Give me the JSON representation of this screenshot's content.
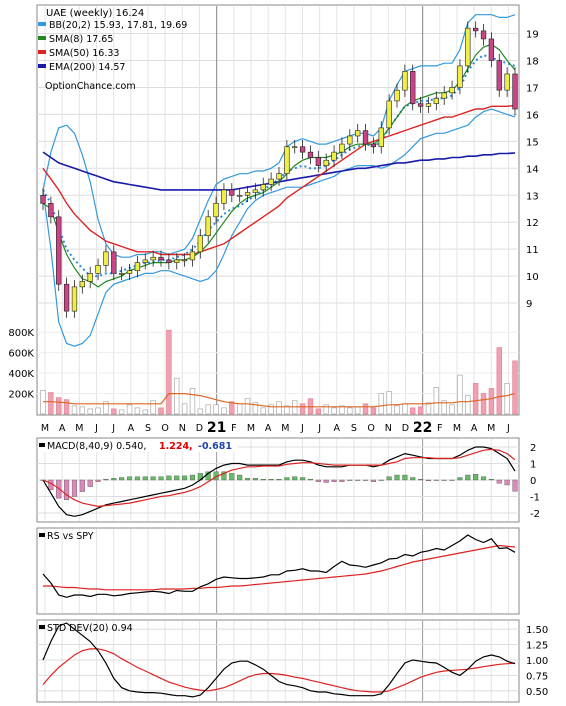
{
  "chart_data": {
    "type": "line",
    "time_axis": {
      "months": [
        "M",
        "A",
        "M",
        "J",
        "J",
        "A",
        "S",
        "O",
        "N",
        "D",
        "21",
        "F",
        "M",
        "A",
        "M",
        "J",
        "J",
        "A",
        "S",
        "O",
        "N",
        "D",
        "22",
        "F",
        "M",
        "A",
        "M",
        "J"
      ],
      "year_markers": [
        "21",
        "22"
      ]
    },
    "price_panel": {
      "title": "UAE (weekly) 16.24",
      "legend": [
        {
          "label": "BB(20,2) 15.93, 17.81, 19.69",
          "color": "#3399dd"
        },
        {
          "label": "SMA(8) 17.65",
          "color": "#228822"
        },
        {
          "label": "SMA(50) 16.33",
          "color": "#dd2222"
        },
        {
          "label": "EMA(200) 14.57",
          "color": "#1a1aaa"
        }
      ],
      "watermark": "OptionChance.com",
      "ylim": [
        8,
        19.8
      ],
      "yticks": [
        "9",
        "10",
        "11",
        "12",
        "13",
        "14",
        "15",
        "16",
        "17",
        "18",
        "19"
      ],
      "close": [
        12.7,
        12.2,
        9.7,
        8.7,
        9.6,
        9.8,
        10.1,
        10.4,
        10.9,
        10.1,
        10.1,
        10.2,
        10.5,
        10.6,
        10.7,
        10.6,
        10.5,
        10.6,
        10.6,
        10.9,
        11.5,
        12.2,
        12.7,
        13.2,
        13.0,
        13.0,
        13.1,
        13.2,
        13.4,
        13.6,
        13.8,
        14.8,
        14.8,
        14.6,
        14.4,
        14.1,
        14.3,
        14.6,
        14.9,
        15.2,
        15.4,
        14.9,
        14.8,
        15.5,
        16.5,
        16.9,
        17.6,
        16.4,
        16.3,
        16.4,
        16.6,
        16.8,
        17.0,
        17.8,
        19.2,
        19.1,
        18.8,
        18.0,
        16.9,
        17.5,
        16.2
      ],
      "bb_upper": [
        13.2,
        14.6,
        15.5,
        15.6,
        15.3,
        14.5,
        13.5,
        12.1,
        11.2,
        10.8,
        10.7,
        10.7,
        10.8,
        10.8,
        10.9,
        10.9,
        10.8,
        10.9,
        11.0,
        11.4,
        12.1,
        12.8,
        13.4,
        13.6,
        13.7,
        13.8,
        13.8,
        13.9,
        13.9,
        14.0,
        14.2,
        14.8,
        15.0,
        15.1,
        15.0,
        14.9,
        14.9,
        15.0,
        15.1,
        15.2,
        15.3,
        15.3,
        15.2,
        15.5,
        16.5,
        17.1,
        17.6,
        17.7,
        17.8,
        17.8,
        17.8,
        17.9,
        17.9,
        18.4,
        19.4,
        19.7,
        19.7,
        19.7,
        19.6,
        19.6,
        19.7
      ],
      "bb_middle": [
        13.2,
        12.7,
        11.8,
        11.0,
        10.6,
        10.3,
        10.0,
        10.0,
        10.1,
        10.1,
        10.2,
        10.3,
        10.4,
        10.5,
        10.5,
        10.6,
        10.6,
        10.7,
        10.8,
        11.0,
        11.3,
        11.7,
        12.0,
        12.3,
        12.5,
        12.6,
        12.8,
        13.0,
        13.2,
        13.4,
        13.6,
        13.9,
        14.0,
        14.1,
        14.0,
        14.0,
        14.1,
        14.3,
        14.5,
        14.7,
        14.8,
        14.9,
        14.8,
        15.0,
        15.5,
        15.9,
        16.3,
        16.4,
        16.5,
        16.5,
        16.6,
        16.6,
        16.7,
        17.0,
        17.6,
        18.0,
        18.2,
        18.1,
        18.0,
        17.9,
        17.8
      ],
      "bb_lower": [
        13.2,
        11.0,
        8.3,
        7.5,
        7.4,
        7.5,
        7.8,
        8.6,
        9.4,
        9.7,
        9.8,
        9.9,
        10.0,
        10.1,
        10.1,
        10.2,
        10.2,
        10.1,
        10.0,
        9.9,
        9.8,
        9.9,
        10.2,
        10.8,
        11.5,
        12.0,
        12.5,
        12.8,
        13.0,
        13.1,
        13.2,
        13.3,
        13.3,
        13.3,
        13.4,
        13.5,
        13.6,
        13.7,
        13.9,
        14.0,
        14.1,
        14.1,
        14.1,
        14.0,
        14.1,
        14.3,
        14.5,
        14.8,
        15.1,
        15.2,
        15.3,
        15.3,
        15.4,
        15.5,
        15.6,
        15.9,
        16.1,
        16.2,
        16.1,
        16.0,
        15.9
      ],
      "sma8": [
        12.7,
        12.5,
        11.6,
        10.8,
        10.3,
        9.9,
        9.8,
        9.6,
        9.8,
        9.9,
        10.0,
        10.2,
        10.3,
        10.4,
        10.5,
        10.5,
        10.5,
        10.6,
        10.6,
        10.7,
        10.9,
        11.2,
        11.6,
        12.0,
        12.4,
        12.7,
        12.9,
        13.0,
        13.1,
        13.3,
        13.5,
        13.8,
        14.1,
        14.3,
        14.4,
        14.4,
        14.4,
        14.5,
        14.6,
        14.8,
        14.9,
        14.9,
        14.9,
        15.1,
        15.5,
        15.9,
        16.3,
        16.5,
        16.6,
        16.7,
        16.8,
        16.8,
        16.9,
        17.2,
        17.7,
        18.2,
        18.5,
        18.6,
        18.4,
        18.0,
        17.65
      ],
      "sma50": [
        14.0,
        13.6,
        13.2,
        12.7,
        12.3,
        12.0,
        11.7,
        11.5,
        11.3,
        11.2,
        11.1,
        11.0,
        10.9,
        10.9,
        10.9,
        10.8,
        10.8,
        10.8,
        10.8,
        10.8,
        10.9,
        11.0,
        11.1,
        11.2,
        11.4,
        11.6,
        11.8,
        12.0,
        12.2,
        12.4,
        12.6,
        12.9,
        13.1,
        13.3,
        13.5,
        13.7,
        13.9,
        14.1,
        14.3,
        14.5,
        14.7,
        14.9,
        15.0,
        15.1,
        15.2,
        15.3,
        15.4,
        15.5,
        15.6,
        15.7,
        15.8,
        15.9,
        15.9,
        16.0,
        16.1,
        16.2,
        16.2,
        16.3,
        16.3,
        16.3,
        16.33
      ],
      "ema200": [
        14.6,
        14.4,
        14.2,
        14.1,
        14.0,
        13.9,
        13.8,
        13.7,
        13.6,
        13.5,
        13.45,
        13.4,
        13.35,
        13.3,
        13.25,
        13.2,
        13.2,
        13.2,
        13.2,
        13.2,
        13.2,
        13.2,
        13.2,
        13.2,
        13.2,
        13.25,
        13.3,
        13.35,
        13.4,
        13.45,
        13.5,
        13.55,
        13.6,
        13.65,
        13.7,
        13.75,
        13.8,
        13.85,
        13.9,
        13.95,
        14.0,
        14.0,
        14.05,
        14.1,
        14.15,
        14.2,
        14.2,
        14.25,
        14.3,
        14.3,
        14.35,
        14.35,
        14.4,
        14.4,
        14.45,
        14.45,
        14.5,
        14.5,
        14.55,
        14.55,
        14.57
      ]
    },
    "volume_panel": {
      "yticks": [
        "200K",
        "400K",
        "600K",
        "800K"
      ],
      "ylim": [
        0,
        900000
      ],
      "volume": [
        230000,
        210000,
        160000,
        140000,
        80000,
        70000,
        50000,
        60000,
        120000,
        50000,
        40000,
        90000,
        60000,
        40000,
        130000,
        60000,
        820000,
        350000,
        100000,
        250000,
        50000,
        90000,
        90000,
        60000,
        120000,
        100000,
        150000,
        110000,
        60000,
        90000,
        120000,
        80000,
        130000,
        100000,
        150000,
        50000,
        90000,
        60000,
        80000,
        60000,
        70000,
        100000,
        60000,
        200000,
        220000,
        80000,
        100000,
        60000,
        70000,
        110000,
        260000,
        130000,
        90000,
        380000,
        180000,
        300000,
        200000,
        250000,
        650000,
        300000,
        520000
      ],
      "volume_avg": [
        120000,
        120000,
        115000,
        110000,
        100000,
        100000,
        100000,
        100000,
        100000,
        100000,
        100000,
        100000,
        100000,
        100000,
        100000,
        100000,
        200000,
        200000,
        200000,
        190000,
        180000,
        160000,
        140000,
        120000,
        110000,
        100000,
        100000,
        90000,
        80000,
        70000,
        70000,
        70000,
        70000,
        70000,
        70000,
        70000,
        70000,
        70000,
        70000,
        70000,
        70000,
        70000,
        70000,
        80000,
        90000,
        90000,
        100000,
        100000,
        100000,
        100000,
        110000,
        110000,
        110000,
        120000,
        120000,
        130000,
        140000,
        150000,
        170000,
        180000,
        200000
      ]
    },
    "macd_panel": {
      "label": "MACD(8,40,9) 0.540,",
      "macd_label": "1.224,",
      "signal_label": "-0.681",
      "ylim": [
        -2.3,
        2.3
      ],
      "yticks": [
        "-2",
        "-1",
        "0",
        "1",
        "2"
      ],
      "macd": [
        0.0,
        -0.8,
        -1.6,
        -2.1,
        -2.2,
        -2.1,
        -1.9,
        -1.7,
        -1.5,
        -1.4,
        -1.3,
        -1.2,
        -1.1,
        -1.0,
        -0.9,
        -0.8,
        -0.7,
        -0.6,
        -0.5,
        -0.3,
        0.0,
        0.4,
        0.7,
        0.9,
        1.0,
        1.0,
        0.9,
        0.9,
        0.9,
        0.9,
        0.9,
        1.1,
        1.2,
        1.2,
        1.1,
        0.9,
        0.8,
        0.8,
        0.8,
        0.9,
        0.9,
        0.9,
        0.8,
        0.9,
        1.2,
        1.4,
        1.6,
        1.5,
        1.4,
        1.3,
        1.3,
        1.3,
        1.3,
        1.5,
        1.8,
        2.0,
        2.0,
        1.9,
        1.6,
        1.3,
        0.54
      ],
      "signal": [
        0.0,
        -0.2,
        -0.5,
        -0.9,
        -1.2,
        -1.4,
        -1.5,
        -1.6,
        -1.55,
        -1.5,
        -1.45,
        -1.4,
        -1.3,
        -1.2,
        -1.1,
        -1.0,
        -0.95,
        -0.85,
        -0.75,
        -0.6,
        -0.4,
        -0.1,
        0.2,
        0.4,
        0.6,
        0.7,
        0.8,
        0.8,
        0.85,
        0.85,
        0.85,
        0.95,
        1.0,
        1.05,
        1.05,
        1.0,
        0.95,
        0.9,
        0.9,
        0.9,
        0.9,
        0.9,
        0.9,
        0.9,
        1.0,
        1.1,
        1.3,
        1.35,
        1.35,
        1.35,
        1.3,
        1.3,
        1.3,
        1.35,
        1.5,
        1.65,
        1.8,
        1.85,
        1.8,
        1.6,
        1.224
      ],
      "histogram": [
        0.0,
        -0.6,
        -1.1,
        -1.2,
        -1.0,
        -0.7,
        -0.4,
        -0.1,
        0.05,
        0.1,
        0.15,
        0.2,
        0.2,
        0.2,
        0.2,
        0.2,
        0.25,
        0.25,
        0.25,
        0.3,
        0.4,
        0.5,
        0.5,
        0.5,
        0.4,
        0.3,
        0.1,
        0.1,
        0.05,
        0.05,
        0.05,
        0.15,
        0.2,
        0.15,
        0.05,
        -0.1,
        -0.15,
        -0.1,
        -0.1,
        0.0,
        0.0,
        0.0,
        -0.1,
        0.0,
        0.2,
        0.3,
        0.3,
        0.15,
        0.05,
        -0.05,
        0.0,
        0.0,
        0.0,
        0.15,
        0.3,
        0.35,
        0.2,
        0.05,
        -0.2,
        -0.3,
        -0.681
      ]
    },
    "rs_panel": {
      "label": "RS vs SPY",
      "rs": [
        0.48,
        0.36,
        0.2,
        0.17,
        0.2,
        0.2,
        0.18,
        0.21,
        0.21,
        0.19,
        0.2,
        0.22,
        0.23,
        0.24,
        0.25,
        0.24,
        0.22,
        0.26,
        0.25,
        0.25,
        0.31,
        0.35,
        0.41,
        0.44,
        0.43,
        0.42,
        0.42,
        0.43,
        0.44,
        0.47,
        0.47,
        0.52,
        0.53,
        0.55,
        0.52,
        0.52,
        0.5,
        0.58,
        0.65,
        0.6,
        0.59,
        0.57,
        0.6,
        0.63,
        0.68,
        0.69,
        0.74,
        0.72,
        0.77,
        0.79,
        0.82,
        0.8,
        0.86,
        0.92,
        1.0,
        0.94,
        0.9,
        0.95,
        0.82,
        0.83,
        0.77
      ],
      "rs_avg": [
        0.32,
        0.32,
        0.31,
        0.3,
        0.3,
        0.29,
        0.28,
        0.28,
        0.27,
        0.27,
        0.27,
        0.27,
        0.27,
        0.27,
        0.27,
        0.28,
        0.28,
        0.28,
        0.28,
        0.29,
        0.29,
        0.3,
        0.3,
        0.31,
        0.32,
        0.32,
        0.33,
        0.34,
        0.35,
        0.36,
        0.37,
        0.38,
        0.39,
        0.4,
        0.41,
        0.42,
        0.43,
        0.44,
        0.45,
        0.46,
        0.47,
        0.48,
        0.5,
        0.52,
        0.55,
        0.58,
        0.61,
        0.64,
        0.66,
        0.68,
        0.7,
        0.72,
        0.74,
        0.76,
        0.78,
        0.8,
        0.82,
        0.84,
        0.86,
        0.85,
        0.84
      ]
    },
    "std_panel": {
      "label": "STD DEV(20) 0.94",
      "ylim": [
        0.35,
        1.6
      ],
      "yticks": [
        "0.50",
        "0.75",
        "1.00",
        "1.25",
        "1.50"
      ],
      "std": [
        1.0,
        1.3,
        1.55,
        1.6,
        1.5,
        1.4,
        1.3,
        1.15,
        0.95,
        0.7,
        0.55,
        0.5,
        0.48,
        0.47,
        0.47,
        0.46,
        0.44,
        0.42,
        0.42,
        0.4,
        0.43,
        0.55,
        0.7,
        0.85,
        0.95,
        0.98,
        0.98,
        0.92,
        0.85,
        0.75,
        0.65,
        0.6,
        0.58,
        0.55,
        0.5,
        0.48,
        0.48,
        0.45,
        0.44,
        0.42,
        0.42,
        0.42,
        0.42,
        0.45,
        0.6,
        0.78,
        0.95,
        1.0,
        0.98,
        0.96,
        0.95,
        0.88,
        0.8,
        0.75,
        0.85,
        0.98,
        1.05,
        1.08,
        1.05,
        0.98,
        0.94
      ],
      "std_avg": [
        0.6,
        0.75,
        0.88,
        0.98,
        1.08,
        1.15,
        1.18,
        1.18,
        1.15,
        1.1,
        1.02,
        0.95,
        0.88,
        0.82,
        0.76,
        0.7,
        0.64,
        0.6,
        0.56,
        0.53,
        0.51,
        0.5,
        0.52,
        0.55,
        0.6,
        0.66,
        0.72,
        0.76,
        0.78,
        0.78,
        0.77,
        0.75,
        0.72,
        0.7,
        0.67,
        0.64,
        0.61,
        0.58,
        0.55,
        0.52,
        0.5,
        0.49,
        0.48,
        0.48,
        0.5,
        0.55,
        0.6,
        0.66,
        0.72,
        0.76,
        0.8,
        0.82,
        0.83,
        0.84,
        0.85,
        0.87,
        0.89,
        0.91,
        0.93,
        0.94,
        0.95
      ]
    },
    "colors": {
      "bb": "#3399dd",
      "sma8": "#228822",
      "sma50": "#dd2222",
      "ema200": "#1a1aaa",
      "trend_dots": "#2a88dd",
      "up_candle": "#eeee44",
      "down_candle": "#cc4488",
      "volume_up": "#cccccc",
      "volume_down": "#f0a0b0",
      "volume_avg": "#dd6622",
      "macd_value_text": "#dd0000",
      "signal_value_text": "#2244aa",
      "hist_pos": "#66bb66",
      "hist_neg": "#dd88bb"
    }
  }
}
